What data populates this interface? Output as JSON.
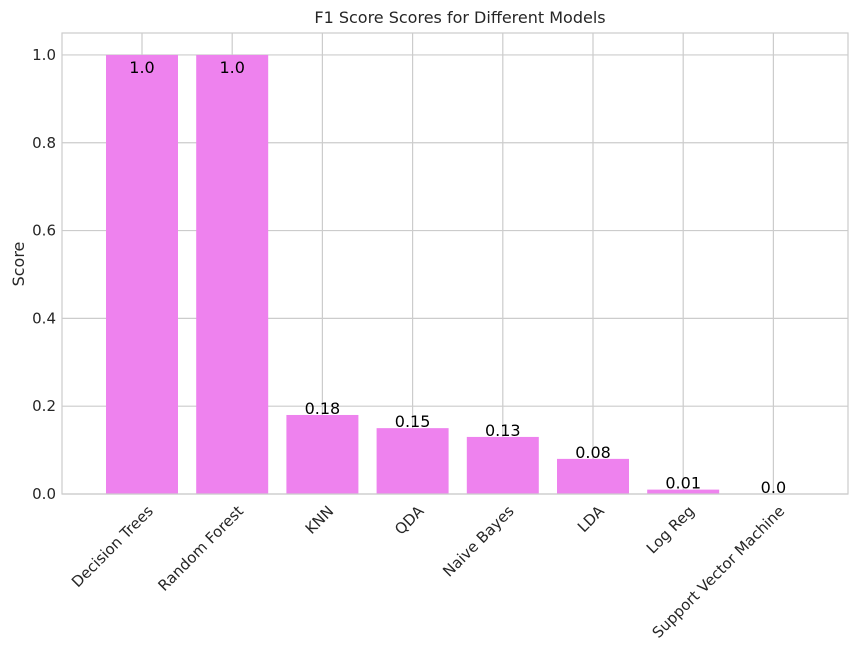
{
  "chart_data": {
    "type": "bar",
    "title": "F1 Score Scores for Different Models",
    "xlabel": "",
    "ylabel": "Score",
    "categories": [
      "Decision Trees",
      "Random Forest",
      "KNN",
      "QDA",
      "Naive Bayes",
      "LDA",
      "Log Reg",
      "Support Vector Machine"
    ],
    "values": [
      1.0,
      1.0,
      0.18,
      0.15,
      0.13,
      0.08,
      0.01,
      0.0
    ],
    "data_labels": [
      "1.0",
      "1.0",
      "0.18",
      "0.15",
      "0.13",
      "0.08",
      "0.01",
      "0.0"
    ],
    "ylim": [
      0,
      1.05
    ],
    "yticks": [
      0.0,
      0.2,
      0.4,
      0.6,
      0.8,
      1.0
    ],
    "ytick_labels": [
      "0.0",
      "0.2",
      "0.4",
      "0.6",
      "0.8",
      "1.0"
    ],
    "grid": true,
    "bar_color": "#ee82ee",
    "x_tick_rotation": 45
  }
}
